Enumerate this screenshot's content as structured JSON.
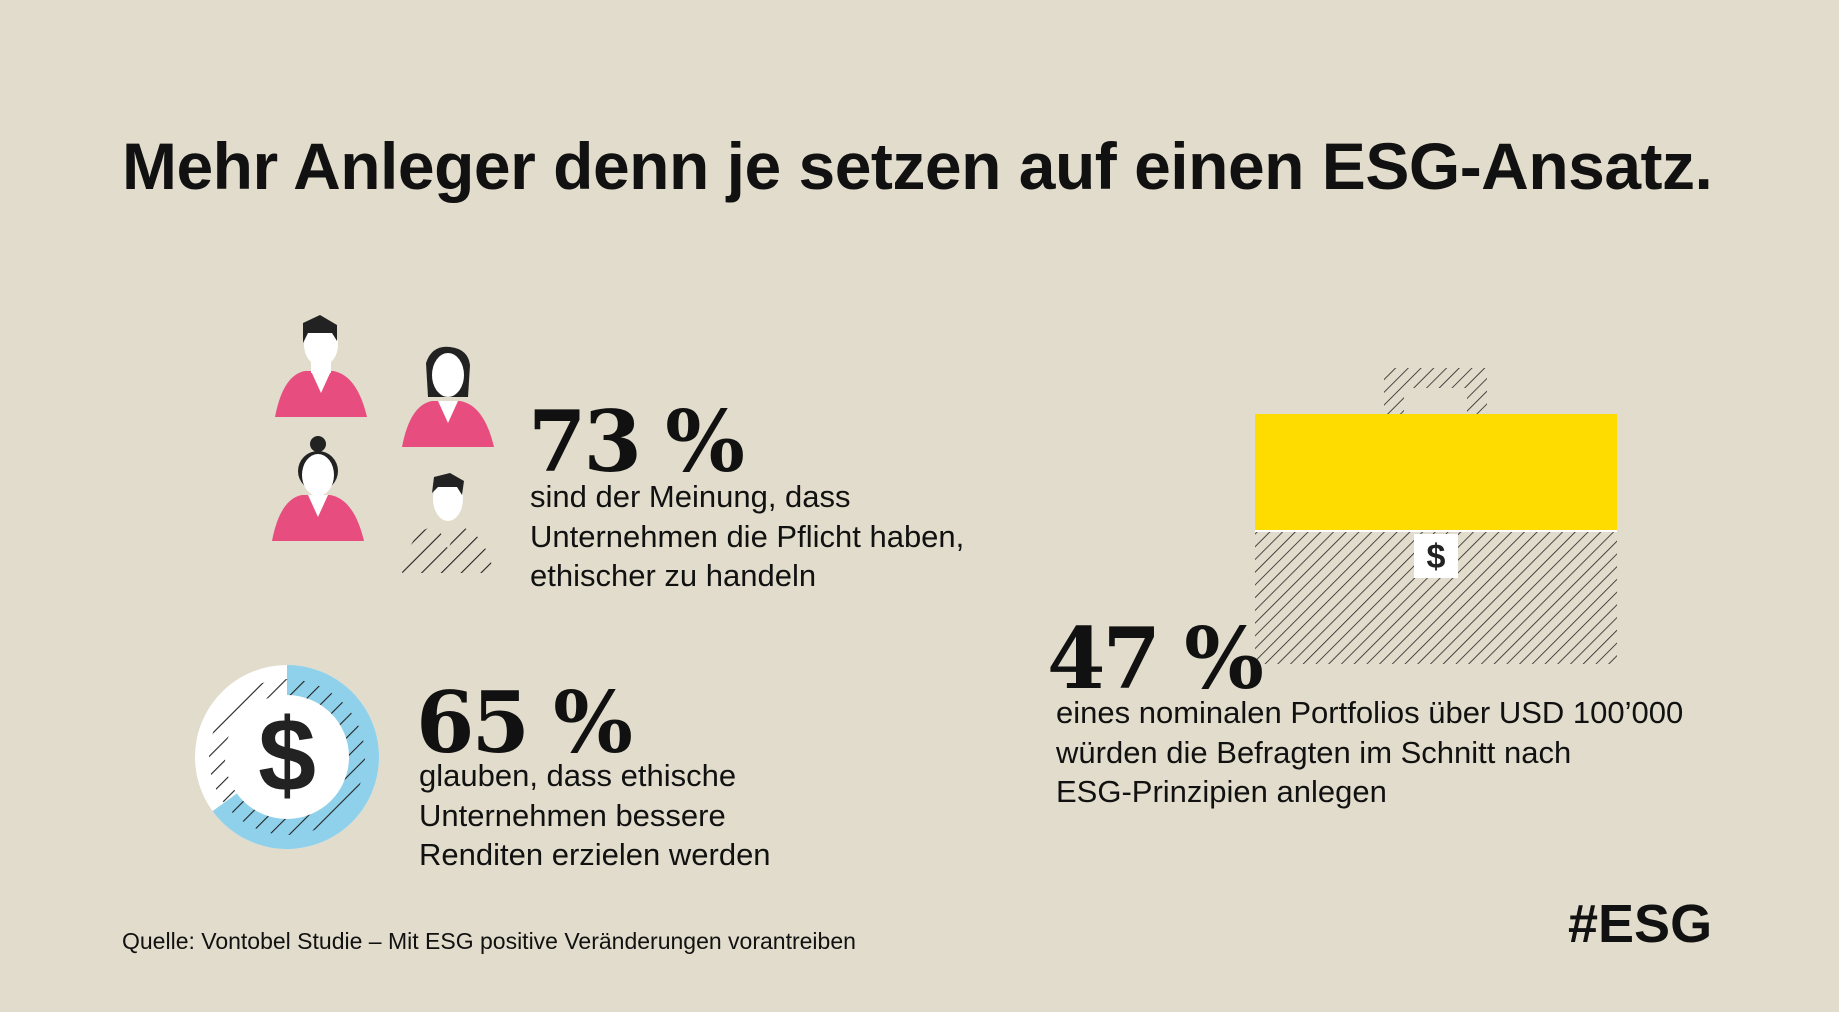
{
  "title": "Mehr Anleger denn je setzen auf einen ESG-Ansatz.",
  "stat1": {
    "value": "73 %",
    "lines": [
      "sind der Meinung, dass",
      "Unternehmen die Pflicht haben,",
      "ethischer zu handeln"
    ],
    "fraction": 0.73
  },
  "stat2": {
    "value": "65 %",
    "lines": [
      "glauben, dass ethische",
      "Unternehmen bessere",
      "Renditen erzielen werden"
    ],
    "fraction": 0.65
  },
  "stat3": {
    "value": "47 %",
    "lines": [
      "eines nominalen Portfolios über USD 100’000",
      "würden die Befragten im Schnitt nach",
      "ESG-Prinzipien anlegen"
    ],
    "fraction": 0.47
  },
  "source": "Quelle: Vontobel Studie – Mit ESG positive Veränderungen vorantreiben",
  "hashtag": "#ESG",
  "icons": {
    "people": "person-icon",
    "donut": "dollar-donut-icon",
    "briefcase": "briefcase-icon",
    "dollar_symbol": "$"
  },
  "colors": {
    "background": "#e1dccb",
    "pink": "#e84d7f",
    "blue": "#8fd1ea",
    "yellow": "#ffdc00"
  }
}
